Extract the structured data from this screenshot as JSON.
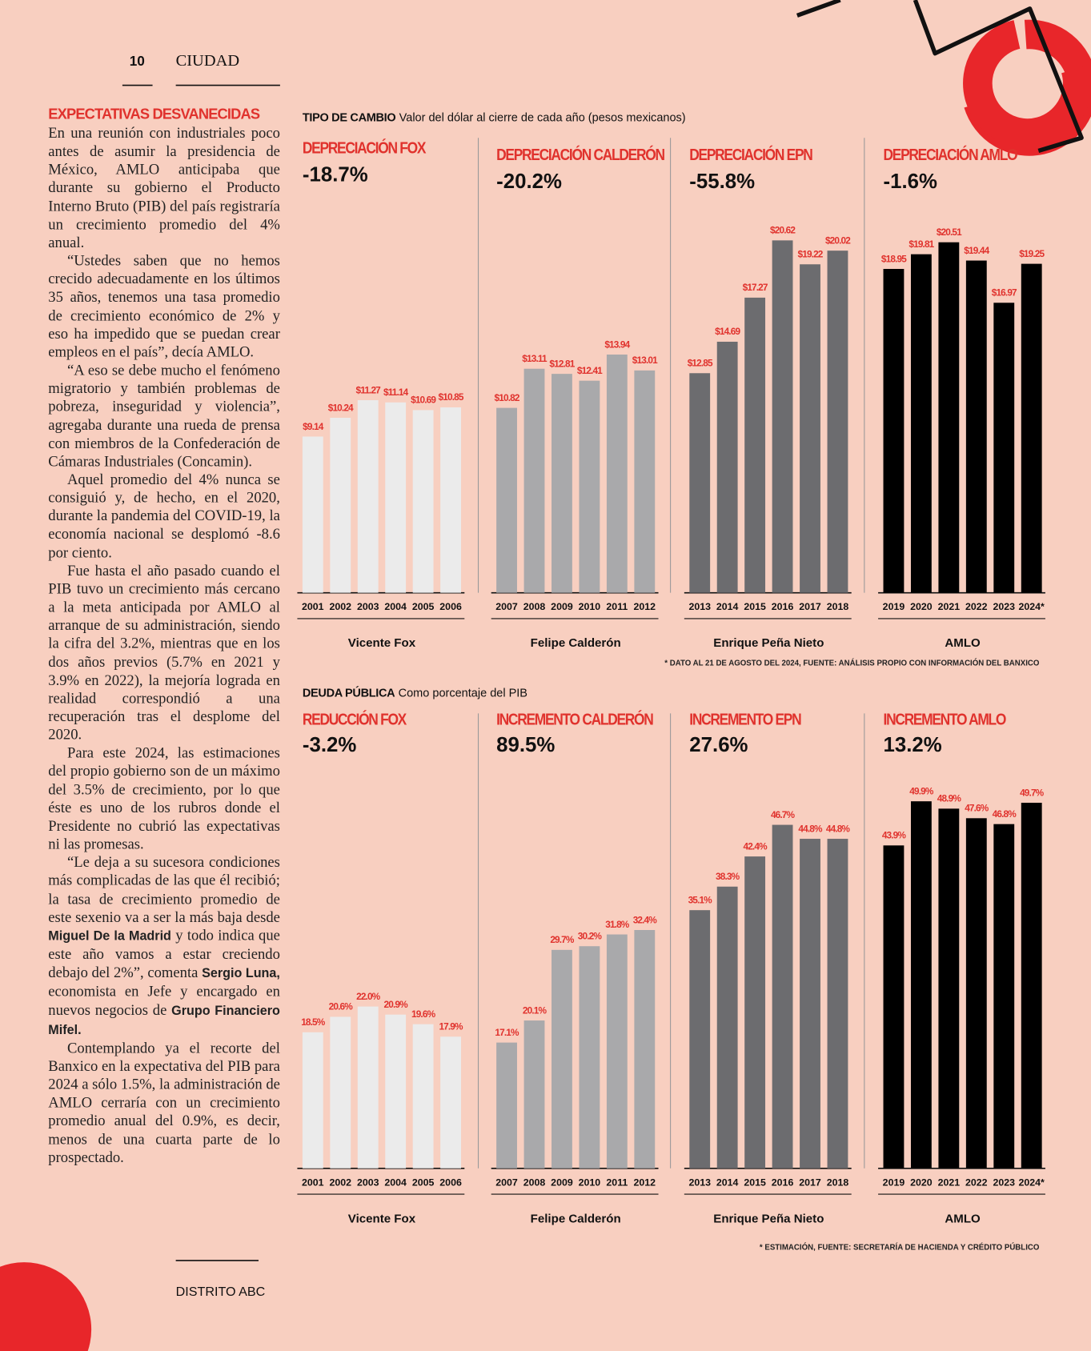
{
  "page": {
    "number": "10",
    "section": "CIUDAD",
    "footer": "DISTRITO ABC"
  },
  "article": {
    "headline": "EXPECTATIVAS DESVANECIDAS",
    "paragraphs": [
      [
        "En una reunión con industriales poco antes de asumir la presidencia de México, AMLO anticipaba que durante su gobierno el Producto Interno Bruto (PIB) del país registraría un crecimiento promedio del 4% anual."
      ],
      [
        "“Ustedes saben que no hemos crecido adecuadamente en los últimos 35 años, tenemos una tasa promedio de crecimiento económico de 2% y eso ha impedido que se puedan crear empleos en el país”, decía AMLO."
      ],
      [
        "“A eso se debe mucho el fenómeno migratorio y también problemas de pobreza, inseguridad y violencia”, agregaba durante una rueda de prensa con miembros de la Confederación de Cámaras Industriales (Concamin)."
      ],
      [
        "Aquel promedio del 4% nunca se consiguió y, de hecho, en el 2020, durante la pandemia del COVID-19, la economía nacional se desplomó -8.6 por ciento."
      ],
      [
        "Fue hasta el año pasado cuando el PIB tuvo un crecimiento más cercano a la meta anticipada por AMLO al arranque de su administración, siendo la cifra del 3.2%, mientras que en los dos años previos (5.7% en 2021 y 3.9% en 2022), la mejoría lograda en realidad correspondió a una recuperación tras el desplome del 2020."
      ],
      [
        "Para este 2024, las estimaciones del propio gobierno son de un máximo del 3.5% de crecimiento, por lo que éste es uno de los rubros donde el Presidente no cubrió las expectativas ni las promesas."
      ],
      [
        "“Le deja a su sucesora condiciones más complicadas de las que él recibió; la tasa de crecimiento promedio de este sexenio va a ser la más baja desde ",
        "Miguel De la Madrid",
        " y todo indica que este año vamos a estar creciendo debajo del 2%”, comenta ",
        "Sergio Luna,",
        " economista en Jefe y encargado en nuevos negocios de ",
        "Grupo Financiero Mifel."
      ],
      [
        "Contemplando ya el recorte del Banxico en la expectativa del PIB para 2024 a sólo 1.5%, la administración de AMLO cerraría con un crecimiento promedio anual del 0.9%, es decir, menos de una cuarta parte de lo prospectado."
      ]
    ]
  },
  "chart_data": [
    {
      "type": "bar",
      "title": "TIPO DE CAMBIO",
      "subtitle": "Valor del dólar al cierre de cada año (pesos mexicanos)",
      "note": "* DATO AL 21 DE AGOSTO DEL 2024, FUENTE: ANÁLISIS PROPIO CON INFORMACIÓN DEL BANXICO",
      "groups": [
        {
          "label": "DEPRECIACIÓN FOX",
          "annotation": "-18.7%",
          "name": "Vicente Fox",
          "color": "#ebebeb",
          "categories": [
            "2001",
            "2002",
            "2003",
            "2004",
            "2005",
            "2006"
          ],
          "values": [
            9.14,
            10.24,
            11.27,
            11.14,
            10.69,
            10.85
          ],
          "value_labels": [
            "$9.14",
            "$10.24",
            "$11.27",
            "$11.14",
            "$10.69",
            "$10.85"
          ]
        },
        {
          "label": "DEPRECIACIÓN CALDERÓN",
          "annotation": "-20.2%",
          "name": "Felipe Calderón",
          "color": "#a9a9ab",
          "categories": [
            "2007",
            "2008",
            "2009",
            "2010",
            "2011",
            "2012"
          ],
          "values": [
            10.82,
            13.11,
            12.81,
            12.41,
            13.94,
            13.01
          ],
          "value_labels": [
            "$10.82",
            "$13.11",
            "$12.81",
            "$12.41",
            "$13.94",
            "$13.01"
          ]
        },
        {
          "label": "DEPRECIACIÓN EPN",
          "annotation": "-55.8%",
          "name": "Enrique Peña Nieto",
          "color": "#6c6c6f",
          "categories": [
            "2013",
            "2014",
            "2015",
            "2016",
            "2017",
            "2018"
          ],
          "values": [
            12.85,
            14.69,
            17.27,
            20.62,
            19.22,
            20.02
          ],
          "value_labels": [
            "$12.85",
            "$14.69",
            "$17.27",
            "$20.62",
            "$19.22",
            "$20.02"
          ]
        },
        {
          "label": "DEPRECIACIÓN AMLO",
          "annotation": "-1.6%",
          "name": "AMLO",
          "color": "#000000",
          "categories": [
            "2019",
            "2020",
            "2021",
            "2022",
            "2023",
            "2024*"
          ],
          "values": [
            18.95,
            19.81,
            20.51,
            19.44,
            16.97,
            19.25
          ],
          "value_labels": [
            "$18.95",
            "$19.81",
            "$20.51",
            "$19.44",
            "$16.97",
            "$19.25"
          ]
        }
      ]
    },
    {
      "type": "bar",
      "title": "DEUDA PÚBLICA",
      "subtitle": "Como porcentaje del PIB",
      "note": "* ESTIMACIÓN, FUENTE: SECRETARÍA DE HACIENDA Y CRÉDITO PÚBLICO",
      "groups": [
        {
          "label": "REDUCCIÓN FOX",
          "annotation": "-3.2%",
          "name": "Vicente Fox",
          "color": "#ebebeb",
          "categories": [
            "2001",
            "2002",
            "2003",
            "2004",
            "2005",
            "2006"
          ],
          "values": [
            18.5,
            20.6,
            22.0,
            20.9,
            19.6,
            17.9
          ],
          "value_labels": [
            "18.5%",
            "20.6%",
            "22.0%",
            "20.9%",
            "19.6%",
            "17.9%"
          ]
        },
        {
          "label": "INCREMENTO CALDERÓN",
          "annotation": "89.5%",
          "name": "Felipe Calderón",
          "color": "#a9a9ab",
          "categories": [
            "2007",
            "2008",
            "2009",
            "2010",
            "2011",
            "2012"
          ],
          "values": [
            17.1,
            20.1,
            29.7,
            30.2,
            31.8,
            32.4
          ],
          "value_labels": [
            "17.1%",
            "20.1%",
            "29.7%",
            "30.2%",
            "31.8%",
            "32.4%"
          ]
        },
        {
          "label": "INCREMENTO EPN",
          "annotation": "27.6%",
          "name": "Enrique Peña Nieto",
          "color": "#6c6c6f",
          "categories": [
            "2013",
            "2014",
            "2015",
            "2016",
            "2017",
            "2018"
          ],
          "values": [
            35.1,
            38.3,
            42.4,
            46.7,
            44.8,
            44.8
          ],
          "value_labels": [
            "35.1%",
            "38.3%",
            "42.4%",
            "46.7%",
            "44.8%",
            "44.8%"
          ]
        },
        {
          "label": "INCREMENTO AMLO",
          "annotation": "13.2%",
          "name": "AMLO",
          "color": "#000000",
          "categories": [
            "2019",
            "2020",
            "2021",
            "2022",
            "2023",
            "2024*"
          ],
          "values": [
            43.9,
            49.9,
            48.9,
            47.6,
            46.8,
            49.7
          ],
          "value_labels": [
            "43.9%",
            "49.9%",
            "48.9%",
            "47.6%",
            "46.8%",
            "49.7%"
          ]
        }
      ]
    }
  ]
}
